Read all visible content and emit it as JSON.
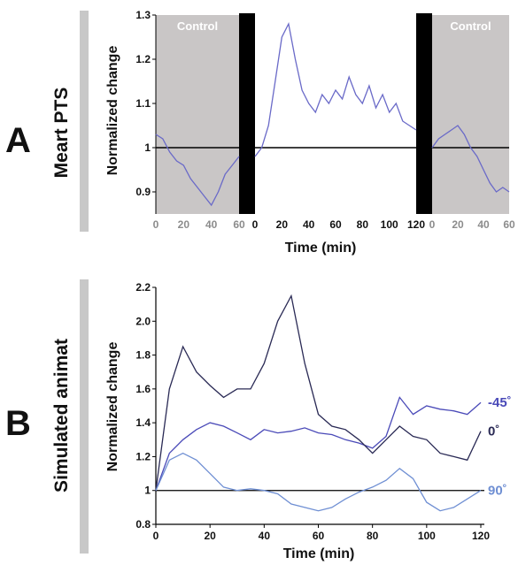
{
  "panel_a": {
    "letter": "A",
    "side_label": "Meart PTS"
  },
  "panel_b": {
    "letter": "B",
    "side_label": "Simulated animat"
  },
  "chart_data": [
    {
      "type": "line",
      "ylabel": "Normalized change",
      "xlabel": "Time (min)",
      "ylim": [
        0.85,
        1.3
      ],
      "yticks": [
        "0.9",
        "1",
        "1.1",
        "1.2",
        "1.3"
      ],
      "baseline": 1,
      "segments": [
        {
          "name": "Control",
          "shaded": true,
          "xlim": [
            0,
            60
          ],
          "xticks": [
            "0",
            "20",
            "40",
            "60"
          ],
          "tick_color": "#8c8c8c"
        },
        {
          "name": "",
          "shaded": false,
          "xlim": [
            0,
            120
          ],
          "xticks": [
            "0",
            "20",
            "40",
            "60",
            "80",
            "100",
            "120"
          ],
          "tick_color": "#111111"
        },
        {
          "name": "Control",
          "shaded": true,
          "xlim": [
            0,
            60
          ],
          "xticks": [
            "0",
            "20",
            "40",
            "60"
          ],
          "tick_color": "#8c8c8c"
        }
      ],
      "series": [
        {
          "segment": 0,
          "color": "#6a6ac8",
          "x": [
            0,
            5,
            10,
            15,
            20,
            25,
            30,
            35,
            40,
            45,
            50,
            55,
            60
          ],
          "y": [
            1.03,
            1.02,
            0.99,
            0.97,
            0.96,
            0.93,
            0.91,
            0.89,
            0.87,
            0.9,
            0.94,
            0.96,
            0.98
          ]
        },
        {
          "segment": 1,
          "color": "#6a6ac8",
          "x": [
            0,
            5,
            10,
            15,
            20,
            25,
            30,
            35,
            40,
            45,
            50,
            55,
            60,
            65,
            70,
            75,
            80,
            85,
            90,
            95,
            100,
            105,
            110,
            115,
            120
          ],
          "y": [
            0.98,
            1.0,
            1.05,
            1.15,
            1.25,
            1.28,
            1.2,
            1.13,
            1.1,
            1.08,
            1.12,
            1.1,
            1.13,
            1.11,
            1.16,
            1.12,
            1.1,
            1.14,
            1.09,
            1.12,
            1.08,
            1.1,
            1.06,
            1.05,
            1.04
          ]
        },
        {
          "segment": 2,
          "color": "#6a6ac8",
          "x": [
            0,
            5,
            10,
            15,
            20,
            25,
            30,
            35,
            40,
            45,
            50,
            55,
            60
          ],
          "y": [
            1.0,
            1.02,
            1.03,
            1.04,
            1.05,
            1.03,
            1.0,
            0.98,
            0.95,
            0.92,
            0.9,
            0.91,
            0.9
          ]
        }
      ]
    },
    {
      "type": "line",
      "ylabel": "Normalized change",
      "xlabel": "Time (min)",
      "xlim": [
        0,
        120
      ],
      "ylim": [
        0.8,
        2.2
      ],
      "xticks": [
        "0",
        "20",
        "40",
        "60",
        "80",
        "100",
        "120"
      ],
      "yticks": [
        "0.8",
        "1",
        "1.2",
        "1.4",
        "1.6",
        "1.8",
        "2.0",
        "2.2"
      ],
      "baseline": 1,
      "series": [
        {
          "name": "-45˚",
          "color": "#4a4ab8",
          "x": [
            0,
            5,
            10,
            15,
            20,
            25,
            30,
            35,
            40,
            45,
            50,
            55,
            60,
            65,
            70,
            75,
            80,
            85,
            90,
            95,
            100,
            105,
            110,
            115,
            120
          ],
          "y": [
            1.0,
            1.22,
            1.3,
            1.36,
            1.4,
            1.38,
            1.34,
            1.3,
            1.36,
            1.34,
            1.35,
            1.37,
            1.34,
            1.33,
            1.3,
            1.28,
            1.25,
            1.32,
            1.55,
            1.45,
            1.5,
            1.48,
            1.47,
            1.45,
            1.52
          ]
        },
        {
          "name": "0˚",
          "color": "#2a2a55",
          "x": [
            0,
            5,
            10,
            15,
            20,
            25,
            30,
            35,
            40,
            45,
            50,
            55,
            60,
            65,
            70,
            75,
            80,
            85,
            90,
            95,
            100,
            105,
            110,
            115,
            120
          ],
          "y": [
            1.0,
            1.6,
            1.85,
            1.7,
            1.62,
            1.55,
            1.6,
            1.6,
            1.75,
            2.0,
            2.15,
            1.75,
            1.45,
            1.38,
            1.36,
            1.3,
            1.22,
            1.3,
            1.38,
            1.32,
            1.3,
            1.22,
            1.2,
            1.18,
            1.35
          ]
        },
        {
          "name": "90˚",
          "color": "#6f8fd3",
          "x": [
            0,
            5,
            10,
            15,
            20,
            25,
            30,
            35,
            40,
            45,
            50,
            55,
            60,
            65,
            70,
            75,
            80,
            85,
            90,
            95,
            100,
            105,
            110,
            115,
            120
          ],
          "y": [
            1.0,
            1.18,
            1.22,
            1.18,
            1.1,
            1.02,
            1.0,
            1.01,
            1.0,
            0.98,
            0.92,
            0.9,
            0.88,
            0.9,
            0.95,
            0.99,
            1.02,
            1.06,
            1.13,
            1.07,
            0.93,
            0.88,
            0.9,
            0.95,
            1.0
          ]
        }
      ]
    }
  ]
}
